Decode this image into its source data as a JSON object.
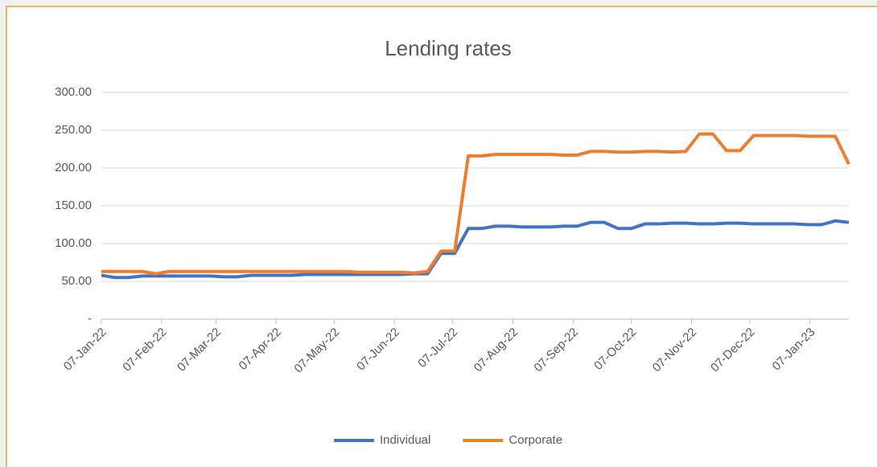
{
  "chart_data": {
    "type": "line",
    "title": "Lending rates",
    "x": [
      "2022-01-07",
      "2022-01-14",
      "2022-01-21",
      "2022-01-28",
      "2022-02-04",
      "2022-02-11",
      "2022-02-18",
      "2022-02-25",
      "2022-03-04",
      "2022-03-11",
      "2022-03-18",
      "2022-03-25",
      "2022-04-01",
      "2022-04-08",
      "2022-04-15",
      "2022-04-22",
      "2022-04-29",
      "2022-05-06",
      "2022-05-13",
      "2022-05-20",
      "2022-05-27",
      "2022-06-03",
      "2022-06-10",
      "2022-06-17",
      "2022-06-24",
      "2022-07-01",
      "2022-07-08",
      "2022-07-15",
      "2022-07-22",
      "2022-07-29",
      "2022-08-05",
      "2022-08-12",
      "2022-08-19",
      "2022-08-26",
      "2022-09-02",
      "2022-09-09",
      "2022-09-16",
      "2022-09-23",
      "2022-09-30",
      "2022-10-07",
      "2022-10-14",
      "2022-10-21",
      "2022-10-28",
      "2022-11-04",
      "2022-11-11",
      "2022-11-18",
      "2022-11-25",
      "2022-12-02",
      "2022-12-09",
      "2022-12-16",
      "2022-12-23",
      "2022-12-30",
      "2023-01-06",
      "2023-01-13",
      "2023-01-20",
      "2023-01-27"
    ],
    "series": [
      {
        "name": "Individual",
        "color": "#4472c4",
        "values": [
          58,
          55,
          55,
          57,
          57,
          57,
          57,
          57,
          57,
          56,
          56,
          58,
          58,
          58,
          58,
          59,
          59,
          59,
          59,
          59,
          59,
          59,
          59,
          60,
          60,
          87,
          87,
          120,
          120,
          123,
          123,
          122,
          122,
          122,
          123,
          123,
          128,
          128,
          120,
          120,
          126,
          126,
          127,
          127,
          126,
          126,
          127,
          127,
          126,
          126,
          126,
          126,
          125,
          125,
          130,
          128
        ]
      },
      {
        "name": "Corporate",
        "color": "#ed7d31",
        "values": [
          63,
          63,
          63,
          63,
          60,
          63,
          63,
          63,
          63,
          63,
          63,
          63,
          63,
          63,
          63,
          63,
          63,
          63,
          63,
          62,
          62,
          62,
          62,
          61,
          63,
          90,
          90,
          216,
          216,
          218,
          218,
          218,
          218,
          218,
          217,
          217,
          222,
          222,
          221,
          221,
          222,
          222,
          221,
          222,
          245,
          245,
          223,
          223,
          243,
          243,
          243,
          243,
          242,
          242,
          242,
          205
        ]
      }
    ],
    "xlim": [
      "2022-01-07",
      "2023-01-27"
    ],
    "xticks": [
      {
        "value": "2022-01-07",
        "label": "07-Jan-22"
      },
      {
        "value": "2022-02-07",
        "label": "07-Feb-22"
      },
      {
        "value": "2022-03-07",
        "label": "07-Mar-22"
      },
      {
        "value": "2022-04-07",
        "label": "07-Apr-22"
      },
      {
        "value": "2022-05-07",
        "label": "07-May-22"
      },
      {
        "value": "2022-06-07",
        "label": "07-Jun-22"
      },
      {
        "value": "2022-07-07",
        "label": "07-Jul-22"
      },
      {
        "value": "2022-08-07",
        "label": "07-Aug-22"
      },
      {
        "value": "2022-09-07",
        "label": "07-Sep-22"
      },
      {
        "value": "2022-10-07",
        "label": "07-Oct-22"
      },
      {
        "value": "2022-11-07",
        "label": "07-Nov-22"
      },
      {
        "value": "2022-12-07",
        "label": "07-Dec-22"
      },
      {
        "value": "2023-01-07",
        "label": "07-Jan-23"
      }
    ],
    "ylim": [
      0,
      300
    ],
    "yticks": [
      {
        "value": 0,
        "label": "-"
      },
      {
        "value": 50,
        "label": "50.00"
      },
      {
        "value": 100,
        "label": "100.00"
      },
      {
        "value": 150,
        "label": "150.00"
      },
      {
        "value": 200,
        "label": "200.00"
      },
      {
        "value": 250,
        "label": "250.00"
      },
      {
        "value": 300,
        "label": "300.00"
      }
    ],
    "grid": true,
    "legend": "bottom"
  }
}
